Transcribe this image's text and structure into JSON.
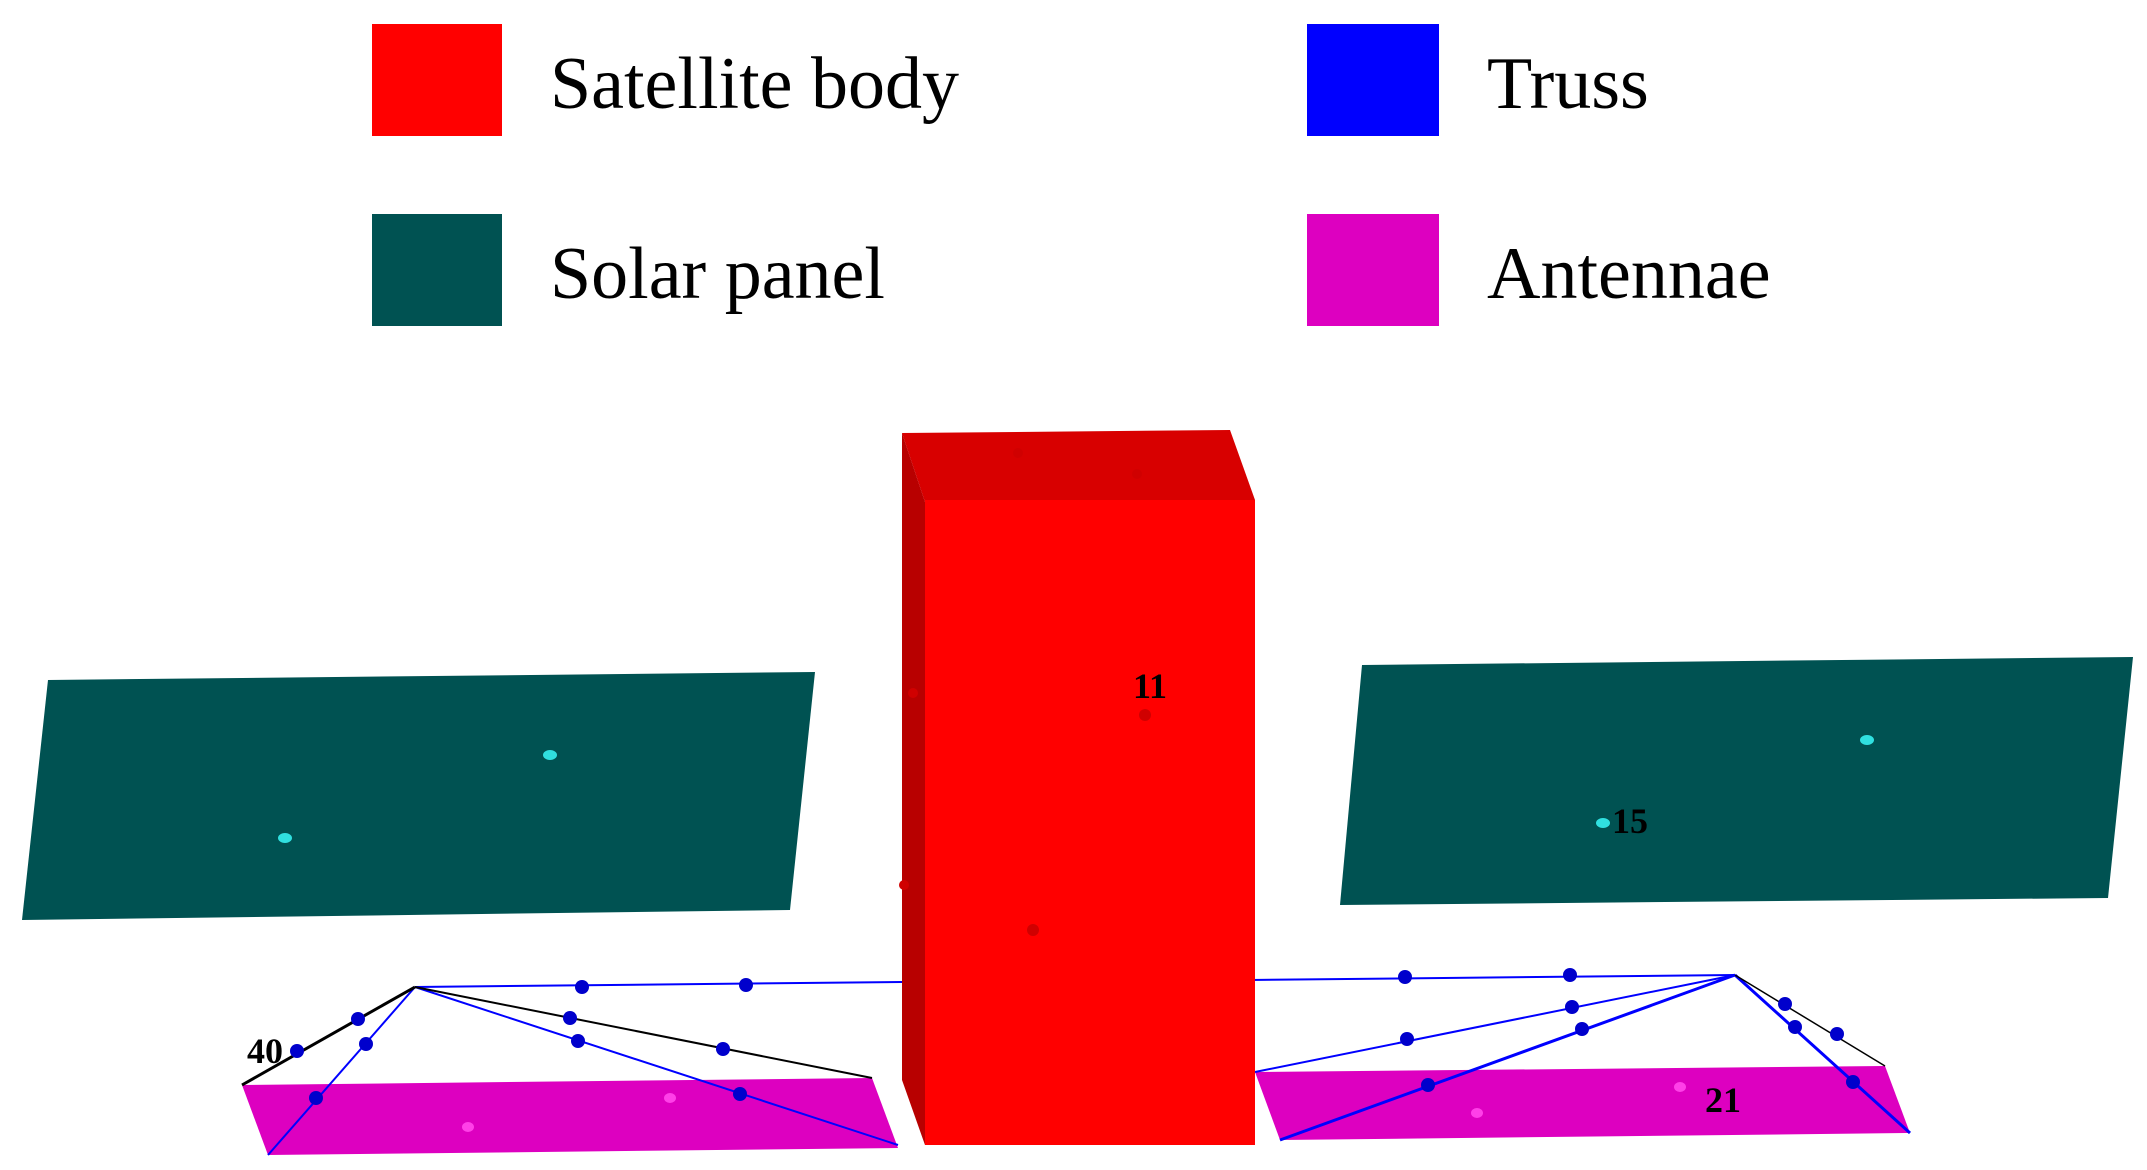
{
  "legend": {
    "items": [
      {
        "label": "Satellite body",
        "color": "#ff0000"
      },
      {
        "label": "Truss",
        "color": "#0000ff"
      },
      {
        "label": "Solar panel",
        "color": "#005252"
      },
      {
        "label": "Antennae",
        "color": "#dd00c0"
      }
    ]
  },
  "model": {
    "node_labels": {
      "body_node": "11",
      "solar_node": "15",
      "antenna_node": "21",
      "truss_node": "40"
    },
    "colors": {
      "body_front": "#ff0000",
      "body_top": "#d80000",
      "body_side": "#b80000",
      "body_node": "#d00000",
      "solar_panel": "#005252",
      "solar_node": "#30e0e0",
      "antenna": "#dd00c0",
      "antenna_node": "#ff40e8",
      "truss_line": "#0000ff",
      "truss_node": "#0000cc",
      "truss_black_line": "#000000"
    }
  }
}
